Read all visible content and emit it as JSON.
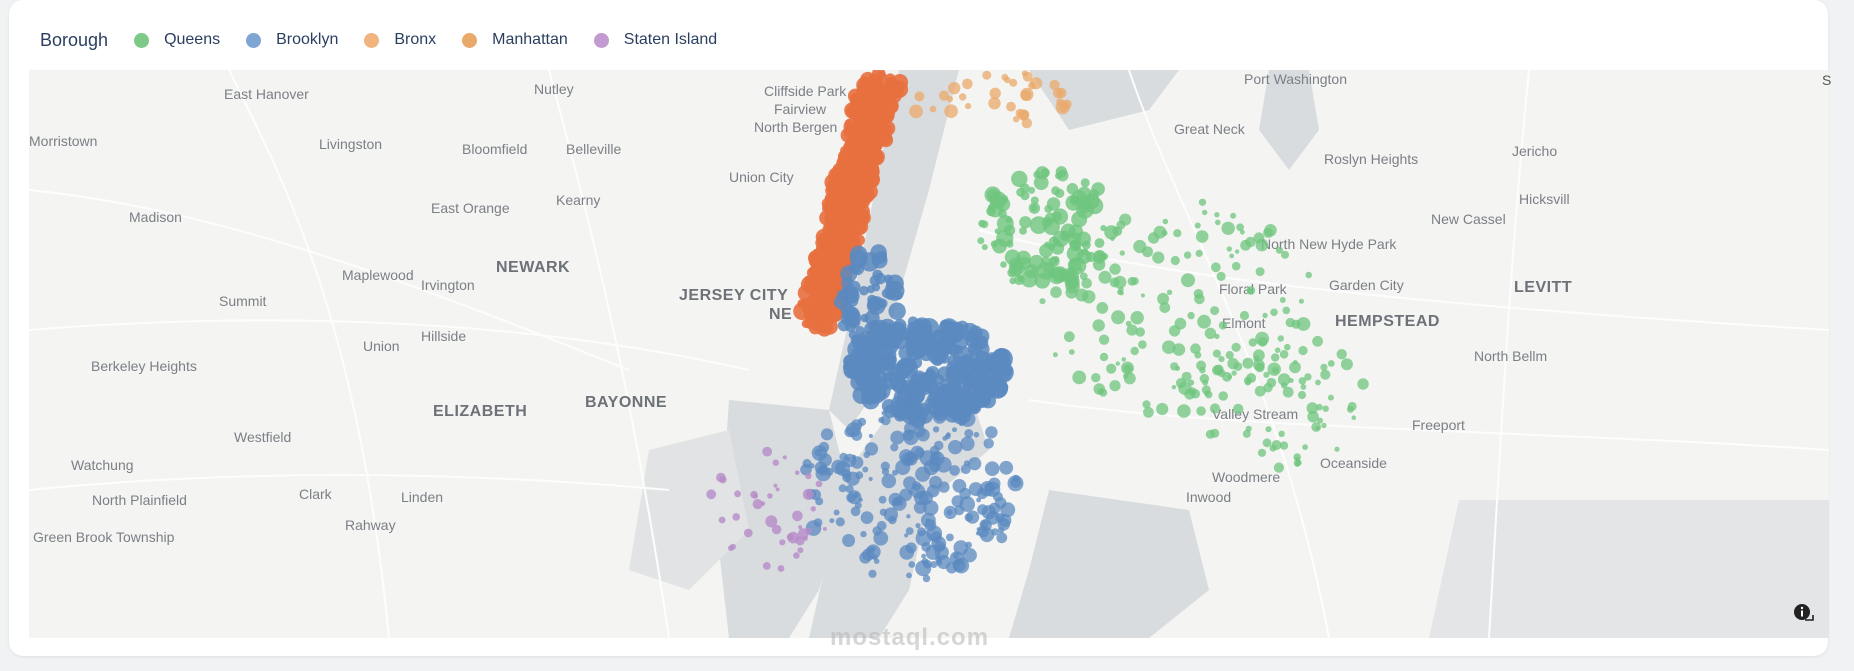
{
  "legend": {
    "title": "Borough",
    "items": [
      {
        "label": "Queens",
        "color": "#7dc988"
      },
      {
        "label": "Brooklyn",
        "color": "#7fa6d2"
      },
      {
        "label": "Bronx",
        "color": "#f0b47f"
      },
      {
        "label": "Manhattan",
        "color": "#e9a96b"
      },
      {
        "label": "Staten Island",
        "color": "#c39bd0"
      }
    ]
  },
  "map": {
    "places": [
      "East Hanover",
      "Nutley",
      "Cliffside Park",
      "Fairview",
      "North Bergen",
      "Port Washington",
      "Morristown",
      "Livingston",
      "Bloomfield",
      "Belleville",
      "Great Neck",
      "Roslyn Heights",
      "Jericho",
      "Union City",
      "Kearny",
      "East Orange",
      "Hicksvill",
      "Madison",
      "New Cassel",
      "North New Hyde Park",
      "NEWARK",
      "Maplewood",
      "Irvington",
      "JERSEY CITY",
      "NE",
      "Floral Park",
      "Garden City",
      "LEVITT",
      "Summit",
      "HEMPSTEAD",
      "Hillside",
      "Elmont",
      "Union",
      "North Bellm",
      "Berkeley Heights",
      "BAYONNE",
      "ELIZABETH",
      "Valley Stream",
      "Westfield",
      "Freeport",
      "Watchung",
      "Oceanside",
      "Woodmere",
      "Clark",
      "Linden",
      "North Plainfield",
      "Inwood",
      "Rahway",
      "Green Brook Township"
    ],
    "corner_glyph": "S"
  },
  "watermark": "mostaql.com",
  "info_icon": "info-icon"
}
